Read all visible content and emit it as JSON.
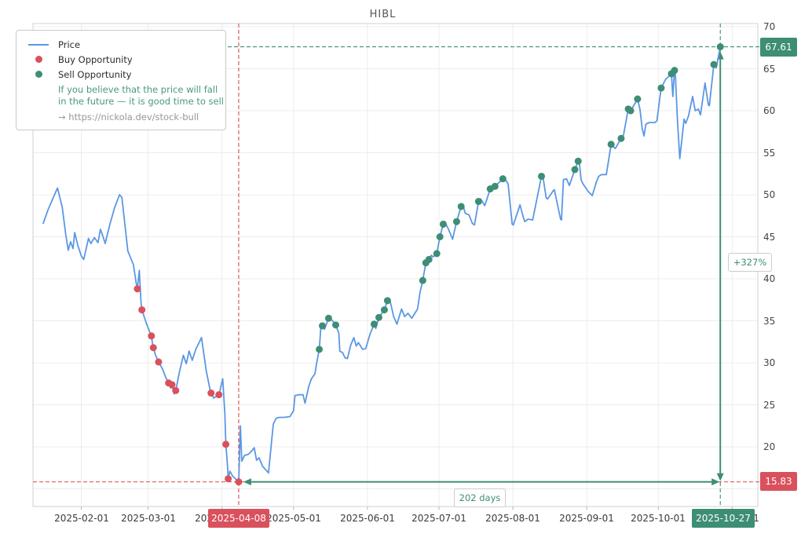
{
  "title": "HIBL",
  "legend": {
    "price_label": "Price",
    "buy_label": "Buy Opportunity",
    "sell_label": "Sell Opportunity",
    "note_line1": "If you believe that the price will fall",
    "note_line2": "in the future — it is good time to sell",
    "link": "→ https://nickola.dev/stock-bull"
  },
  "axes": {
    "y_ticks": [
      "70",
      "65",
      "60",
      "55",
      "50",
      "45",
      "40",
      "35",
      "30",
      "25",
      "20"
    ],
    "x_ticks": [
      "2025-02-01",
      "2025-03-01",
      "2025-04-01",
      "2025-05-01",
      "2025-06-01",
      "2025-07-01",
      "2025-08-01",
      "2025-09-01",
      "2025-10-01",
      "2025-11-01"
    ]
  },
  "annotations": {
    "sell_price": "67.61",
    "buy_price": "15.83",
    "buy_date": "2025-04-08",
    "sell_date": "2025-10-27",
    "gain": "+327%",
    "duration": "202 days"
  },
  "colors": {
    "price": "#5b97e4",
    "buy": "#d9515c",
    "buy_dash": "#d94a4e",
    "sell": "#3d8e74",
    "grid": "#ececec",
    "border": "#d8d8d8",
    "tick": "#b0b0b0"
  },
  "chart_data": {
    "type": "line",
    "title": "HIBL",
    "x_unit": "days since 2025-01-16",
    "ylim": [
      12.9,
      70.4
    ],
    "y_gridlines": [
      70,
      65,
      60,
      55,
      50,
      45,
      40,
      35,
      30,
      25,
      20,
      15
    ],
    "month_tick_days": [
      16,
      44,
      75,
      105,
      136,
      166,
      197,
      228,
      258,
      289
    ],
    "month_tick_labels": [
      "2025-02-01",
      "2025-03-01",
      "2025-04-01",
      "2025-05-01",
      "2025-06-01",
      "2025-07-01",
      "2025-08-01",
      "2025-09-01",
      "2025-10-01",
      "2025-11-01"
    ],
    "buy_line": {
      "date": "2025-04-08",
      "day": 82,
      "price": 15.83
    },
    "sell_line": {
      "date": "2025-10-27",
      "day": 284,
      "price": 67.61
    },
    "gain_percent": 327,
    "duration_days": 202,
    "series": [
      {
        "name": "Price",
        "points": [
          [
            0,
            46.6
          ],
          [
            2,
            48.2
          ],
          [
            4,
            49.5
          ],
          [
            6,
            50.8
          ],
          [
            8,
            48.5
          ],
          [
            9.5,
            45.2
          ],
          [
            10.5,
            43.4
          ],
          [
            11.5,
            44.4
          ],
          [
            12.5,
            43.6
          ],
          [
            13.2,
            45.5
          ],
          [
            14.5,
            44.0
          ],
          [
            16,
            42.7
          ],
          [
            17,
            42.3
          ],
          [
            19,
            44.8
          ],
          [
            20,
            44.2
          ],
          [
            21.5,
            44.9
          ],
          [
            23,
            44.3
          ],
          [
            24,
            45.9
          ],
          [
            25,
            45.1
          ],
          [
            26,
            44.2
          ],
          [
            28,
            46.5
          ],
          [
            30,
            48.5
          ],
          [
            32,
            50.0
          ],
          [
            33,
            49.7
          ],
          [
            35.5,
            43.3
          ],
          [
            37.8,
            41.7
          ],
          [
            39,
            39.5
          ],
          [
            39.5,
            38.8
          ],
          [
            40.3,
            41.0
          ],
          [
            41,
            37.3
          ],
          [
            41.4,
            36.3
          ],
          [
            43.4,
            34.6
          ],
          [
            44.5,
            33.8
          ],
          [
            45.4,
            33.2
          ],
          [
            45.8,
            32.4
          ],
          [
            46.2,
            31.8
          ],
          [
            47,
            31.0
          ],
          [
            48.4,
            30.1
          ],
          [
            50,
            29.3
          ],
          [
            51.5,
            28.2
          ],
          [
            52.6,
            27.6
          ],
          [
            53.5,
            27.0
          ],
          [
            54,
            27.4
          ],
          [
            54.9,
            26.3
          ],
          [
            55.6,
            26.7
          ],
          [
            57.2,
            29.0
          ],
          [
            58.8,
            30.9
          ],
          [
            60,
            29.9
          ],
          [
            61.2,
            31.4
          ],
          [
            62.5,
            30.3
          ],
          [
            64,
            31.6
          ],
          [
            66.4,
            33.0
          ],
          [
            68.4,
            29.0
          ],
          [
            70,
            26.8
          ],
          [
            70.4,
            26.4
          ],
          [
            71.5,
            25.8
          ],
          [
            72.5,
            26.0
          ],
          [
            73.7,
            26.2
          ],
          [
            75.3,
            28.1
          ],
          [
            76.2,
            24.0
          ],
          [
            76.6,
            20.3
          ],
          [
            77.3,
            17.8
          ],
          [
            77.6,
            16.2
          ],
          [
            78.3,
            17.1
          ],
          [
            79.5,
            16.5
          ],
          [
            82,
            15.83
          ],
          [
            82.7,
            22.5
          ],
          [
            83.3,
            18.3
          ],
          [
            84.5,
            19.0
          ],
          [
            86,
            19.1
          ],
          [
            87.5,
            19.5
          ],
          [
            88.5,
            19.9
          ],
          [
            89.5,
            18.4
          ],
          [
            90.5,
            18.7
          ],
          [
            92,
            17.7
          ],
          [
            94.5,
            16.9
          ],
          [
            96.5,
            22.7
          ],
          [
            97.7,
            23.4
          ],
          [
            99,
            23.5
          ],
          [
            101,
            23.5
          ],
          [
            103.5,
            23.6
          ],
          [
            105,
            24.3
          ],
          [
            105.6,
            26.1
          ],
          [
            107,
            26.2
          ],
          [
            109,
            26.2
          ],
          [
            109.8,
            25.2
          ],
          [
            111.5,
            27.3
          ],
          [
            112.5,
            28.1
          ],
          [
            114,
            28.7
          ],
          [
            114.6,
            29.8
          ],
          [
            115.8,
            31.6
          ],
          [
            116.4,
            34.0
          ],
          [
            117.1,
            34.4
          ],
          [
            118,
            34.0
          ],
          [
            119.7,
            35.3
          ],
          [
            121,
            35.1
          ],
          [
            122.7,
            34.5
          ],
          [
            124,
            33.5
          ],
          [
            124.4,
            31.4
          ],
          [
            125.6,
            31.2
          ],
          [
            126.6,
            30.6
          ],
          [
            127.6,
            30.5
          ],
          [
            129,
            32.1
          ],
          [
            130.3,
            33.0
          ],
          [
            131.3,
            32.0
          ],
          [
            132.2,
            32.4
          ],
          [
            134,
            31.6
          ],
          [
            135.3,
            31.7
          ],
          [
            137.2,
            33.5
          ],
          [
            138.8,
            34.6
          ],
          [
            139.5,
            34.1
          ],
          [
            140.8,
            35.4
          ],
          [
            143.1,
            36.3
          ],
          [
            144.4,
            37.4
          ],
          [
            145.4,
            37.5
          ],
          [
            147,
            35.5
          ],
          [
            148.4,
            34.6
          ],
          [
            150.3,
            36.4
          ],
          [
            151.6,
            35.5
          ],
          [
            153,
            35.9
          ],
          [
            154.6,
            35.3
          ],
          [
            157,
            36.4
          ],
          [
            158,
            38.3
          ],
          [
            159.2,
            39.8
          ],
          [
            160.5,
            41.9
          ],
          [
            161.8,
            42.3
          ],
          [
            162.8,
            42.8
          ],
          [
            163.5,
            42.6
          ],
          [
            165.1,
            43.0
          ],
          [
            166.4,
            45.0
          ],
          [
            167.8,
            46.5
          ],
          [
            168.4,
            46.8
          ],
          [
            170,
            45.9
          ],
          [
            171.7,
            44.7
          ],
          [
            173.4,
            46.8
          ],
          [
            175.3,
            48.6
          ],
          [
            176,
            48.9
          ],
          [
            177,
            47.8
          ],
          [
            178.6,
            47.6
          ],
          [
            180,
            46.6
          ],
          [
            180.9,
            46.4
          ],
          [
            182.6,
            49.2
          ],
          [
            183.5,
            49.5
          ],
          [
            185.2,
            48.7
          ],
          [
            187.5,
            50.7
          ],
          [
            189.5,
            51.0
          ],
          [
            192.8,
            51.9
          ],
          [
            193.4,
            52.0
          ],
          [
            195,
            51.3
          ],
          [
            196.7,
            46.5
          ],
          [
            197.2,
            46.4
          ],
          [
            200,
            48.8
          ],
          [
            201.3,
            47.4
          ],
          [
            202,
            46.8
          ],
          [
            203.4,
            47.1
          ],
          [
            205.3,
            47.0
          ],
          [
            209,
            52.2
          ],
          [
            209.6,
            52.2
          ],
          [
            211,
            49.6
          ],
          [
            211.6,
            49.5
          ],
          [
            214,
            50.5
          ],
          [
            214.4,
            50.6
          ],
          [
            217,
            47.1
          ],
          [
            217.4,
            47.0
          ],
          [
            218.2,
            51.8
          ],
          [
            219.5,
            51.9
          ],
          [
            220.7,
            51.1
          ],
          [
            223,
            53.0
          ],
          [
            224.4,
            54.0
          ],
          [
            224.8,
            54.1
          ],
          [
            225.6,
            51.8
          ],
          [
            226.4,
            51.3
          ],
          [
            228.6,
            50.4
          ],
          [
            230.3,
            49.9
          ],
          [
            232,
            51.5
          ],
          [
            233,
            52.2
          ],
          [
            234.2,
            52.4
          ],
          [
            236.2,
            52.4
          ],
          [
            238.2,
            56.0
          ],
          [
            240,
            55.5
          ],
          [
            242.4,
            56.7
          ],
          [
            243.4,
            57.1
          ],
          [
            245.4,
            60.2
          ],
          [
            246,
            59.7
          ],
          [
            246.4,
            60.0
          ],
          [
            249.3,
            61.4
          ],
          [
            250.3,
            60.2
          ],
          [
            251.3,
            57.8
          ],
          [
            252,
            57.0
          ],
          [
            252.8,
            58.4
          ],
          [
            254.3,
            58.6
          ],
          [
            256.6,
            58.6
          ],
          [
            257.4,
            58.8
          ],
          [
            259.2,
            62.7
          ],
          [
            261,
            63.7
          ],
          [
            263.5,
            64.4
          ],
          [
            264.1,
            61.7
          ],
          [
            264.8,
            64.8
          ],
          [
            265.1,
            64.8
          ],
          [
            266,
            59.0
          ],
          [
            267,
            54.3
          ],
          [
            267.8,
            56.3
          ],
          [
            268.8,
            59.0
          ],
          [
            269.5,
            58.5
          ],
          [
            270.7,
            59.4
          ],
          [
            272.4,
            61.7
          ],
          [
            273.5,
            60.0
          ],
          [
            274.8,
            60.2
          ],
          [
            275.7,
            59.5
          ],
          [
            277.6,
            63.3
          ],
          [
            279,
            60.7
          ],
          [
            279.4,
            60.6
          ],
          [
            281.3,
            65.5
          ],
          [
            281.9,
            65.7
          ],
          [
            282.3,
            65.1
          ],
          [
            284,
            67.61
          ]
        ]
      }
    ],
    "buy_points": [
      [
        39.5,
        38.8
      ],
      [
        41.4,
        36.3
      ],
      [
        45.4,
        33.2
      ],
      [
        46.2,
        31.8
      ],
      [
        48.4,
        30.1
      ],
      [
        52.6,
        27.6
      ],
      [
        54,
        27.4
      ],
      [
        55.6,
        26.7
      ],
      [
        70.4,
        26.4
      ],
      [
        73.7,
        26.2
      ],
      [
        76.6,
        20.3
      ],
      [
        77.6,
        16.2
      ],
      [
        82,
        15.83
      ]
    ],
    "sell_points": [
      [
        115.8,
        31.6
      ],
      [
        117.1,
        34.4
      ],
      [
        119.7,
        35.3
      ],
      [
        122.7,
        34.5
      ],
      [
        138.8,
        34.6
      ],
      [
        140.8,
        35.4
      ],
      [
        143.1,
        36.3
      ],
      [
        144.4,
        37.4
      ],
      [
        159.2,
        39.8
      ],
      [
        160.5,
        41.9
      ],
      [
        161.8,
        42.3
      ],
      [
        165.1,
        43.0
      ],
      [
        166.4,
        45.0
      ],
      [
        167.8,
        46.5
      ],
      [
        173.4,
        46.8
      ],
      [
        175.3,
        48.6
      ],
      [
        182.6,
        49.2
      ],
      [
        187.5,
        50.7
      ],
      [
        189.5,
        51.0
      ],
      [
        192.8,
        51.9
      ],
      [
        209,
        52.2
      ],
      [
        223,
        53.0
      ],
      [
        224.4,
        54.0
      ],
      [
        238.2,
        56.0
      ],
      [
        242.4,
        56.7
      ],
      [
        245.4,
        60.2
      ],
      [
        246.4,
        60.0
      ],
      [
        249.3,
        61.4
      ],
      [
        259.2,
        62.7
      ],
      [
        263.5,
        64.4
      ],
      [
        264.8,
        64.8
      ],
      [
        281.3,
        65.5
      ],
      [
        284,
        67.61
      ]
    ]
  }
}
